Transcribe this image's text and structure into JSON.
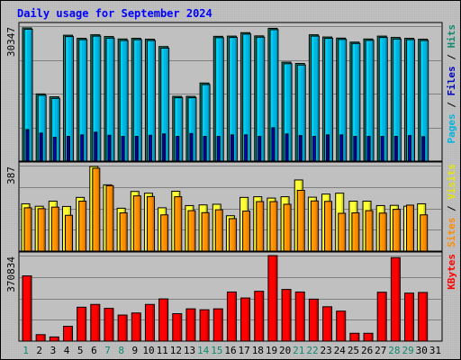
{
  "chart_data": {
    "type": "bar",
    "title": "Daily usage for September 2024",
    "categories": [
      "1",
      "2",
      "3",
      "4",
      "5",
      "6",
      "7",
      "8",
      "9",
      "10",
      "11",
      "12",
      "13",
      "14",
      "15",
      "16",
      "17",
      "18",
      "19",
      "20",
      "21",
      "22",
      "23",
      "24",
      "25",
      "26",
      "27",
      "28",
      "29",
      "30",
      "31"
    ],
    "weekend_days": [
      1,
      7,
      8,
      14,
      15,
      21,
      22,
      28,
      29
    ],
    "panels": [
      {
        "id": "pages-files-hits",
        "ymax_label": "30347",
        "ymax": 30347,
        "right_label": [
          {
            "text": "Pages",
            "color": "#00b5e0"
          },
          {
            "text": " / ",
            "color": "#000000"
          },
          {
            "text": "Files",
            "color": "#0000c0"
          },
          {
            "text": " / ",
            "color": "#000000"
          },
          {
            "text": "Hits",
            "color": "#0f8a6f"
          }
        ],
        "series": [
          {
            "name": "Hits",
            "color": "#0f8a6f",
            "values": [
              29950,
              15100,
              14450,
              28300,
              27600,
              28400,
              28000,
              27450,
              27600,
              27400,
              25750,
              14550,
              14550,
              17550,
              28050,
              28100,
              28870,
              28150,
              29850,
              22250,
              21950,
              28400,
              27900,
              27650,
              26750,
              27450,
              28100,
              27800,
              27600,
              27400,
              0
            ]
          },
          {
            "name": "Files",
            "color": "#0000c0",
            "values": [
              7100,
              6300,
              5350,
              5550,
              5900,
              6500,
              5800,
              5550,
              5550,
              5800,
              6100,
              5550,
              6200,
              5550,
              5550,
              5900,
              5900,
              5550,
              7500,
              6100,
              5750,
              5550,
              5900,
              5900,
              5550,
              5550,
              5550,
              5550,
              5750,
              5500,
              0
            ]
          },
          {
            "name": "Pages",
            "color": "#00b5e0",
            "values": [
              29650,
              14800,
              14100,
              28000,
              27300,
              28100,
              27650,
              27100,
              27300,
              27100,
              25400,
              14250,
              14250,
              17200,
              27750,
              27800,
              28550,
              27850,
              29550,
              21900,
              21600,
              28100,
              27600,
              27350,
              26450,
              27150,
              27800,
              27450,
              27300,
              27100,
              0
            ]
          }
        ]
      },
      {
        "id": "visits-sites",
        "ymax_label": "387",
        "ymax": 387,
        "right_label": [
          {
            "text": "Sites",
            "color": "#ff8c00"
          },
          {
            "text": " / ",
            "color": "#000000"
          },
          {
            "text": "Visits",
            "color": "#e6e600"
          }
        ],
        "series": [
          {
            "name": "Visits",
            "color": "#ffff33",
            "values": [
              214,
              203,
              226,
              202,
              243,
              383,
              300,
              194,
              270,
              262,
              196,
              271,
              206,
              209,
              212,
              160,
              243,
              246,
              240,
              246,
              322,
              244,
              258,
              262,
              226,
              226,
              206,
              207,
              203,
              214,
              0
            ]
          },
          {
            "name": "Sites",
            "color": "#ff8c00",
            "values": [
              196,
              192,
              199,
              162,
              226,
              375,
              296,
              173,
              250,
              247,
              164,
              246,
              183,
              174,
              187,
              147,
              181,
              224,
              224,
              212,
              275,
              227,
              225,
              171,
              173,
              183,
              172,
              189,
              208,
              164,
              0
            ]
          }
        ]
      },
      {
        "id": "kbytes",
        "ymax_label": "370834",
        "ymax": 370834,
        "right_label": [
          {
            "text": "KBytes",
            "color": "#ff0000"
          }
        ],
        "series": [
          {
            "name": "KBytes",
            "color": "#ff0000",
            "values": [
              283000,
              28000,
              18000,
              64000,
              147000,
              159000,
              142000,
              113000,
              122000,
              159000,
              183000,
              119000,
              140000,
              136000,
              140000,
              213000,
              187000,
              216000,
              376000,
              224000,
              213000,
              182000,
              149000,
              130000,
              34000,
              34000,
              212000,
              362000,
              208000,
              211000,
              0
            ]
          }
        ]
      }
    ]
  },
  "colors": {
    "frame_border": "#000000",
    "plot_background": "#c0c0c0",
    "gridline": "#808080",
    "title": "#0000ff",
    "weekday_label": "#0f8a6f"
  }
}
